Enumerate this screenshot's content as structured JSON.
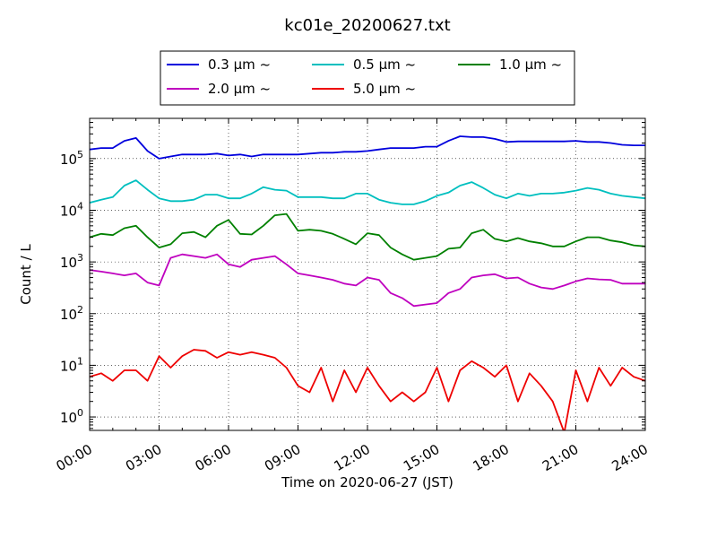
{
  "chart_data": {
    "type": "line",
    "title": "kc01e_20200627.txt",
    "xlabel": "Time on 2020-06-27 (JST)",
    "ylabel": "Count / L",
    "yscale": "log",
    "ylim": [
      0.55,
      600000
    ],
    "xlim": [
      "00:00",
      "24:00"
    ],
    "grid": true,
    "legend_position": "top",
    "x_ticks": [
      "00:00",
      "03:00",
      "06:00",
      "09:00",
      "12:00",
      "15:00",
      "18:00",
      "21:00",
      "24:00"
    ],
    "y_ticks": [
      {
        "value": 1,
        "base": "10",
        "exp": "0"
      },
      {
        "value": 10,
        "base": "10",
        "exp": "1"
      },
      {
        "value": 100,
        "base": "10",
        "exp": "2"
      },
      {
        "value": 1000,
        "base": "10",
        "exp": "3"
      },
      {
        "value": 10000,
        "base": "10",
        "exp": "4"
      },
      {
        "value": 100000,
        "base": "10",
        "exp": "5"
      }
    ],
    "series": [
      {
        "name": "0.3 μm ~",
        "color": "#0000dd",
        "x": [
          "00:00",
          "00:30",
          "01:00",
          "01:30",
          "02:00",
          "02:30",
          "03:00",
          "03:30",
          "04:00",
          "04:30",
          "05:00",
          "05:30",
          "06:00",
          "06:30",
          "07:00",
          "07:30",
          "08:00",
          "08:30",
          "09:00",
          "09:30",
          "10:00",
          "10:30",
          "11:00",
          "11:30",
          "12:00",
          "12:30",
          "13:00",
          "13:30",
          "14:00",
          "14:30",
          "15:00",
          "15:30",
          "16:00",
          "16:30",
          "17:00",
          "17:30",
          "18:00",
          "18:30",
          "19:00",
          "19:30",
          "20:00",
          "20:30",
          "21:00",
          "21:30",
          "22:00",
          "22:30",
          "23:00",
          "23:30",
          "24:00"
        ],
        "y": [
          150000,
          160000,
          160000,
          220000,
          250000,
          140000,
          100000,
          110000,
          120000,
          120000,
          120000,
          125000,
          115000,
          120000,
          110000,
          120000,
          120000,
          120000,
          120000,
          125000,
          130000,
          130000,
          135000,
          135000,
          140000,
          150000,
          160000,
          160000,
          160000,
          170000,
          170000,
          220000,
          270000,
          260000,
          260000,
          240000,
          210000,
          215000,
          215000,
          215000,
          215000,
          215000,
          220000,
          210000,
          210000,
          200000,
          185000,
          180000,
          180000
        ]
      },
      {
        "name": "0.5 μm ~",
        "color": "#00bfbf",
        "x": [
          "00:00",
          "00:30",
          "01:00",
          "01:30",
          "02:00",
          "02:30",
          "03:00",
          "03:30",
          "04:00",
          "04:30",
          "05:00",
          "05:30",
          "06:00",
          "06:30",
          "07:00",
          "07:30",
          "08:00",
          "08:30",
          "09:00",
          "09:30",
          "10:00",
          "10:30",
          "11:00",
          "11:30",
          "12:00",
          "12:30",
          "13:00",
          "13:30",
          "14:00",
          "14:30",
          "15:00",
          "15:30",
          "16:00",
          "16:30",
          "17:00",
          "17:30",
          "18:00",
          "18:30",
          "19:00",
          "19:30",
          "20:00",
          "20:30",
          "21:00",
          "21:30",
          "22:00",
          "22:30",
          "23:00",
          "23:30",
          "24:00"
        ],
        "y": [
          14000,
          16000,
          18000,
          30000,
          38000,
          25000,
          17000,
          15000,
          15000,
          16000,
          20000,
          20000,
          17000,
          17000,
          21000,
          28000,
          25000,
          24000,
          18000,
          18000,
          18000,
          17000,
          17000,
          21000,
          21000,
          16000,
          14000,
          13000,
          13000,
          15000,
          19000,
          22000,
          30000,
          35000,
          27000,
          20000,
          17000,
          21000,
          19000,
          21000,
          21000,
          22000,
          24000,
          27000,
          25000,
          21000,
          19000,
          18000,
          17000
        ]
      },
      {
        "name": "1.0 μm ~",
        "color": "#008000",
        "x": [
          "00:00",
          "00:30",
          "01:00",
          "01:30",
          "02:00",
          "02:30",
          "03:00",
          "03:30",
          "04:00",
          "04:30",
          "05:00",
          "05:30",
          "06:00",
          "06:30",
          "07:00",
          "07:30",
          "08:00",
          "08:30",
          "09:00",
          "09:30",
          "10:00",
          "10:30",
          "11:00",
          "11:30",
          "12:00",
          "12:30",
          "13:00",
          "13:30",
          "14:00",
          "14:30",
          "15:00",
          "15:30",
          "16:00",
          "16:30",
          "17:00",
          "17:30",
          "18:00",
          "18:30",
          "19:00",
          "19:30",
          "20:00",
          "20:30",
          "21:00",
          "21:30",
          "22:00",
          "22:30",
          "23:00",
          "23:30",
          "24:00"
        ],
        "y": [
          3000,
          3500,
          3300,
          4500,
          5000,
          3000,
          1900,
          2200,
          3600,
          3800,
          3000,
          5000,
          6500,
          3500,
          3400,
          5000,
          8000,
          8500,
          4000,
          4200,
          4000,
          3500,
          2800,
          2200,
          3600,
          3300,
          1900,
          1400,
          1100,
          1200,
          1300,
          1800,
          1900,
          3600,
          4200,
          2800,
          2500,
          2900,
          2500,
          2300,
          2000,
          2000,
          2500,
          3000,
          3000,
          2600,
          2400,
          2100,
          2000
        ]
      },
      {
        "name": "2.0 μm ~",
        "color": "#bf00bf",
        "x": [
          "00:00",
          "00:30",
          "01:00",
          "01:30",
          "02:00",
          "02:30",
          "03:00",
          "03:30",
          "04:00",
          "04:30",
          "05:00",
          "05:30",
          "06:00",
          "06:30",
          "07:00",
          "07:30",
          "08:00",
          "08:30",
          "09:00",
          "09:30",
          "10:00",
          "10:30",
          "11:00",
          "11:30",
          "12:00",
          "12:30",
          "13:00",
          "13:30",
          "14:00",
          "14:30",
          "15:00",
          "15:30",
          "16:00",
          "16:30",
          "17:00",
          "17:30",
          "18:00",
          "18:30",
          "19:00",
          "19:30",
          "20:00",
          "20:30",
          "21:00",
          "21:30",
          "22:00",
          "22:30",
          "23:00",
          "23:30",
          "24:00"
        ],
        "y": [
          700,
          650,
          600,
          550,
          600,
          400,
          350,
          1200,
          1400,
          1300,
          1200,
          1400,
          900,
          800,
          1100,
          1200,
          1300,
          900,
          600,
          550,
          500,
          450,
          380,
          350,
          500,
          450,
          250,
          200,
          140,
          150,
          160,
          250,
          300,
          500,
          550,
          580,
          480,
          500,
          380,
          320,
          300,
          350,
          420,
          480,
          460,
          450,
          380,
          380,
          380
        ]
      },
      {
        "name": "5.0 μm ~",
        "color": "#ee0000",
        "x": [
          "00:00",
          "00:30",
          "01:00",
          "01:30",
          "02:00",
          "02:30",
          "03:00",
          "03:30",
          "04:00",
          "04:30",
          "05:00",
          "05:30",
          "06:00",
          "06:30",
          "07:00",
          "07:30",
          "08:00",
          "08:30",
          "09:00",
          "09:30",
          "10:00",
          "10:30",
          "11:00",
          "11:30",
          "12:00",
          "12:30",
          "13:00",
          "13:30",
          "14:00",
          "14:30",
          "15:00",
          "15:30",
          "16:00",
          "16:30",
          "17:00",
          "17:30",
          "18:00",
          "18:30",
          "19:00",
          "19:30",
          "20:00",
          "20:30",
          "21:00",
          "21:30",
          "22:00",
          "22:30",
          "23:00",
          "23:30",
          "24:00"
        ],
        "y": [
          6,
          7,
          5,
          8,
          8,
          5,
          15,
          9,
          15,
          20,
          19,
          14,
          18,
          16,
          18,
          16,
          14,
          9,
          4,
          3,
          9,
          2,
          8,
          3,
          9,
          4,
          2,
          3,
          2,
          3,
          9,
          2,
          8,
          12,
          9,
          6,
          10,
          2,
          7,
          4,
          2,
          0.5,
          8,
          2,
          9,
          4,
          9,
          6,
          5
        ]
      }
    ]
  }
}
